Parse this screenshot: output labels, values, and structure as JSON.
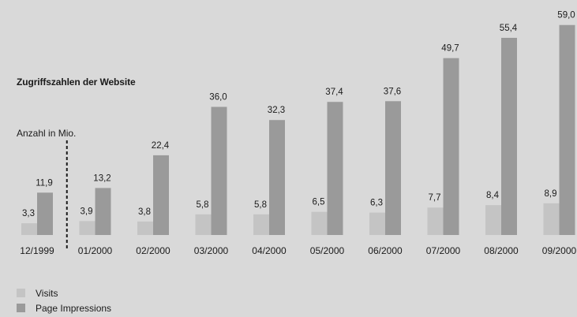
{
  "chart_data": {
    "type": "bar",
    "title": "Zugriffszahlen der Website",
    "ylabel": "Anzahl in Mio.",
    "xlabel": "",
    "categories": [
      "12/1999",
      "01/2000",
      "02/2000",
      "03/2000",
      "04/2000",
      "05/2000",
      "06/2000",
      "07/2000",
      "08/2000",
      "09/2000"
    ],
    "series": [
      {
        "name": "Visits",
        "color": "#c4c4c4",
        "values": [
          3.3,
          3.9,
          3.8,
          5.8,
          5.8,
          6.5,
          6.3,
          7.7,
          8.4,
          8.9
        ],
        "labels": [
          "3,3",
          "3,9",
          "3,8",
          "5,8",
          "5,8",
          "6,5",
          "6,3",
          "7,7",
          "8,4",
          "8,9"
        ]
      },
      {
        "name": "Page Impressions",
        "color": "#9a9a9a",
        "values": [
          11.9,
          13.2,
          22.4,
          36.0,
          32.3,
          37.4,
          37.6,
          49.7,
          55.4,
          59.0
        ],
        "labels": [
          "11,9",
          "13,2",
          "22,4",
          "36,0",
          "32,3",
          "37,4",
          "37,6",
          "49,7",
          "55,4",
          "59,0"
        ]
      }
    ],
    "ylim": [
      0,
      59.0
    ],
    "grid": false,
    "legend": "bottom-left",
    "separator_after_category": "12/1999"
  }
}
